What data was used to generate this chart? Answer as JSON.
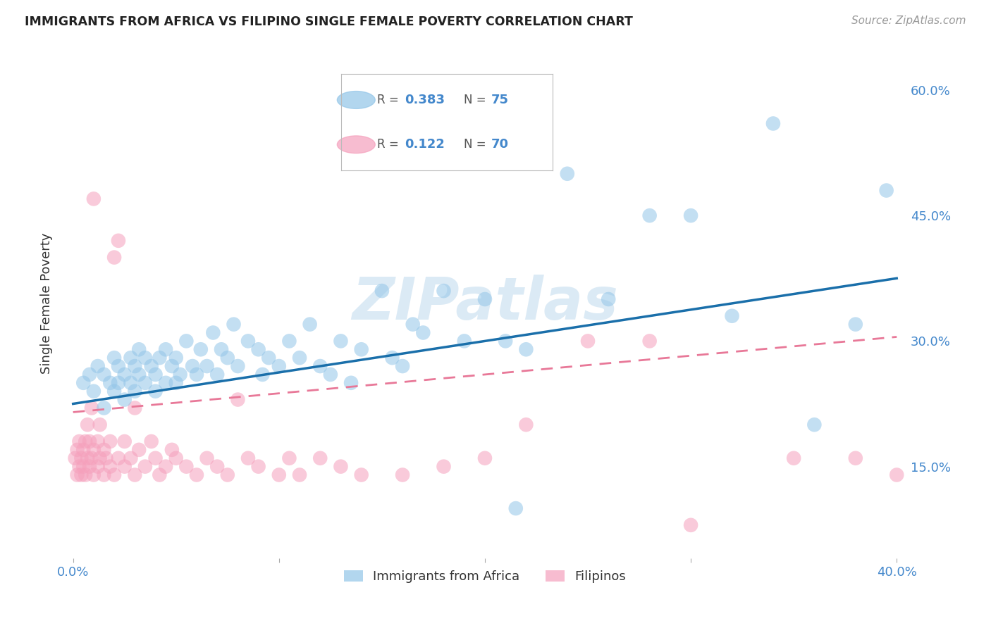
{
  "title": "IMMIGRANTS FROM AFRICA VS FILIPINO SINGLE FEMALE POVERTY CORRELATION CHART",
  "source": "Source: ZipAtlas.com",
  "ylabel": "Single Female Poverty",
  "ytick_labels": [
    "15.0%",
    "30.0%",
    "45.0%",
    "60.0%"
  ],
  "ytick_values": [
    0.15,
    0.3,
    0.45,
    0.6
  ],
  "xtick_labels": [
    "0.0%",
    "",
    "",
    "",
    "40.0%"
  ],
  "xtick_values": [
    0.0,
    0.1,
    0.2,
    0.3,
    0.4
  ],
  "xlim": [
    -0.005,
    0.405
  ],
  "ylim": [
    0.04,
    0.65
  ],
  "legend_entry1_label": "Immigrants from Africa",
  "legend_entry1_R": "0.383",
  "legend_entry1_N": "75",
  "legend_entry2_label": "Filipinos",
  "legend_entry2_R": "0.122",
  "legend_entry2_N": "70",
  "blue_color": "#92C5E8",
  "pink_color": "#F5A0BC",
  "trend_blue_color": "#1A6FAA",
  "trend_pink_color": "#E87898",
  "background": "#ffffff",
  "grid_color": "#cccccc",
  "axis_label_color": "#4488CC",
  "text_color": "#333333",
  "watermark_color": "#D8E8F4",
  "blue_scatter_x": [
    0.005,
    0.008,
    0.01,
    0.012,
    0.015,
    0.015,
    0.018,
    0.02,
    0.02,
    0.022,
    0.022,
    0.025,
    0.025,
    0.028,
    0.028,
    0.03,
    0.03,
    0.032,
    0.032,
    0.035,
    0.035,
    0.038,
    0.04,
    0.04,
    0.042,
    0.045,
    0.045,
    0.048,
    0.05,
    0.05,
    0.052,
    0.055,
    0.058,
    0.06,
    0.062,
    0.065,
    0.068,
    0.07,
    0.072,
    0.075,
    0.078,
    0.08,
    0.085,
    0.09,
    0.092,
    0.095,
    0.1,
    0.105,
    0.11,
    0.115,
    0.12,
    0.125,
    0.13,
    0.135,
    0.14,
    0.15,
    0.155,
    0.16,
    0.165,
    0.17,
    0.18,
    0.19,
    0.2,
    0.21,
    0.215,
    0.22,
    0.24,
    0.26,
    0.28,
    0.3,
    0.32,
    0.34,
    0.36,
    0.38,
    0.395
  ],
  "blue_scatter_y": [
    0.25,
    0.26,
    0.24,
    0.27,
    0.22,
    0.26,
    0.25,
    0.24,
    0.28,
    0.25,
    0.27,
    0.23,
    0.26,
    0.25,
    0.28,
    0.24,
    0.27,
    0.26,
    0.29,
    0.25,
    0.28,
    0.27,
    0.24,
    0.26,
    0.28,
    0.25,
    0.29,
    0.27,
    0.25,
    0.28,
    0.26,
    0.3,
    0.27,
    0.26,
    0.29,
    0.27,
    0.31,
    0.26,
    0.29,
    0.28,
    0.32,
    0.27,
    0.3,
    0.29,
    0.26,
    0.28,
    0.27,
    0.3,
    0.28,
    0.32,
    0.27,
    0.26,
    0.3,
    0.25,
    0.29,
    0.36,
    0.28,
    0.27,
    0.32,
    0.31,
    0.36,
    0.3,
    0.35,
    0.3,
    0.1,
    0.29,
    0.5,
    0.35,
    0.45,
    0.45,
    0.33,
    0.56,
    0.2,
    0.32,
    0.48
  ],
  "pink_scatter_x": [
    0.001,
    0.002,
    0.002,
    0.003,
    0.003,
    0.004,
    0.004,
    0.005,
    0.005,
    0.006,
    0.006,
    0.007,
    0.007,
    0.008,
    0.008,
    0.009,
    0.009,
    0.01,
    0.01,
    0.01,
    0.012,
    0.012,
    0.013,
    0.013,
    0.015,
    0.015,
    0.016,
    0.018,
    0.018,
    0.02,
    0.02,
    0.022,
    0.022,
    0.025,
    0.025,
    0.028,
    0.03,
    0.03,
    0.032,
    0.035,
    0.038,
    0.04,
    0.042,
    0.045,
    0.048,
    0.05,
    0.055,
    0.06,
    0.065,
    0.07,
    0.075,
    0.08,
    0.085,
    0.09,
    0.1,
    0.105,
    0.11,
    0.12,
    0.13,
    0.14,
    0.16,
    0.18,
    0.2,
    0.22,
    0.25,
    0.28,
    0.3,
    0.35,
    0.38,
    0.4
  ],
  "pink_scatter_y": [
    0.16,
    0.14,
    0.17,
    0.15,
    0.18,
    0.16,
    0.14,
    0.17,
    0.15,
    0.18,
    0.14,
    0.16,
    0.2,
    0.15,
    0.18,
    0.16,
    0.22,
    0.14,
    0.17,
    0.47,
    0.15,
    0.18,
    0.16,
    0.2,
    0.14,
    0.17,
    0.16,
    0.15,
    0.18,
    0.4,
    0.14,
    0.16,
    0.42,
    0.15,
    0.18,
    0.16,
    0.14,
    0.22,
    0.17,
    0.15,
    0.18,
    0.16,
    0.14,
    0.15,
    0.17,
    0.16,
    0.15,
    0.14,
    0.16,
    0.15,
    0.14,
    0.23,
    0.16,
    0.15,
    0.14,
    0.16,
    0.14,
    0.16,
    0.15,
    0.14,
    0.14,
    0.15,
    0.16,
    0.2,
    0.3,
    0.3,
    0.08,
    0.16,
    0.16,
    0.14
  ],
  "trend_blue_x0": 0.0,
  "trend_blue_y0": 0.225,
  "trend_blue_x1": 0.4,
  "trend_blue_y1": 0.375,
  "trend_pink_x0": 0.0,
  "trend_pink_y0": 0.215,
  "trend_pink_x1": 0.4,
  "trend_pink_y1": 0.305
}
